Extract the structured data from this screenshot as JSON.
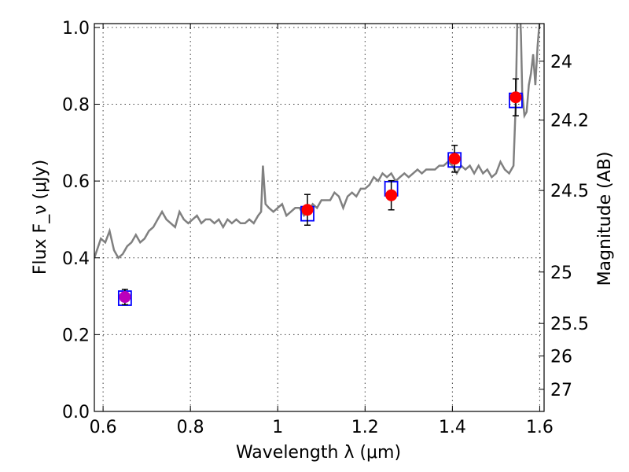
{
  "chart_data": {
    "type": "line",
    "xlabel": "Wavelength λ (μm)",
    "ylabel": "Flux F_ν (μJy)",
    "ylabel_right": "Magnitude (AB)",
    "xlim": [
      0.58,
      1.61
    ],
    "ylim": [
      0.0,
      1.01
    ],
    "grid": true,
    "x_ticks": [
      0.6,
      0.8,
      1.0,
      1.2,
      1.4,
      1.6
    ],
    "x_tick_labels": [
      "0.6",
      "0.8",
      "1",
      "1.2",
      "1.4",
      "1.6"
    ],
    "y_ticks": [
      0.0,
      0.2,
      0.4,
      0.6,
      0.8,
      1.0
    ],
    "y_tick_labels": [
      "0.0",
      "0.2",
      "0.4",
      "0.6",
      "0.8",
      "1.0"
    ],
    "right_ticks": [
      {
        "label": "24",
        "mag": 24.0
      },
      {
        "label": "24.2",
        "mag": 24.2
      },
      {
        "label": "24.5",
        "mag": 24.5
      },
      {
        "label": "25",
        "mag": 25.0
      },
      {
        "label": "25.5",
        "mag": 25.5
      },
      {
        "label": "26",
        "mag": 26.0
      },
      {
        "label": "27",
        "mag": 27.0
      }
    ],
    "series": [
      {
        "kind": "spectrum-line",
        "color": "#808080",
        "x": [
          0.58,
          0.595,
          0.605,
          0.615,
          0.625,
          0.635,
          0.645,
          0.655,
          0.665,
          0.675,
          0.685,
          0.695,
          0.705,
          0.715,
          0.725,
          0.735,
          0.745,
          0.755,
          0.765,
          0.775,
          0.785,
          0.795,
          0.805,
          0.815,
          0.825,
          0.835,
          0.845,
          0.855,
          0.865,
          0.875,
          0.885,
          0.895,
          0.905,
          0.915,
          0.925,
          0.935,
          0.945,
          0.955,
          0.962,
          0.966,
          0.972,
          0.98,
          0.99,
          1.0,
          1.01,
          1.02,
          1.03,
          1.04,
          1.05,
          1.06,
          1.07,
          1.08,
          1.09,
          1.1,
          1.11,
          1.12,
          1.13,
          1.14,
          1.15,
          1.16,
          1.17,
          1.18,
          1.19,
          1.2,
          1.21,
          1.22,
          1.23,
          1.24,
          1.25,
          1.26,
          1.27,
          1.28,
          1.29,
          1.3,
          1.31,
          1.32,
          1.33,
          1.34,
          1.35,
          1.36,
          1.37,
          1.38,
          1.39,
          1.4,
          1.41,
          1.42,
          1.43,
          1.44,
          1.45,
          1.46,
          1.47,
          1.48,
          1.49,
          1.5,
          1.51,
          1.52,
          1.53,
          1.54,
          1.545,
          1.55,
          1.553,
          1.557,
          1.56,
          1.565,
          1.57,
          1.575,
          1.58,
          1.585,
          1.59,
          1.595,
          1.6,
          1.605
        ],
        "y": [
          0.4,
          0.45,
          0.44,
          0.47,
          0.42,
          0.4,
          0.41,
          0.43,
          0.44,
          0.46,
          0.44,
          0.45,
          0.47,
          0.48,
          0.5,
          0.52,
          0.5,
          0.49,
          0.48,
          0.52,
          0.5,
          0.49,
          0.5,
          0.51,
          0.49,
          0.5,
          0.5,
          0.49,
          0.5,
          0.48,
          0.5,
          0.49,
          0.5,
          0.49,
          0.49,
          0.5,
          0.49,
          0.51,
          0.52,
          0.64,
          0.54,
          0.53,
          0.52,
          0.53,
          0.54,
          0.51,
          0.52,
          0.53,
          0.53,
          0.51,
          0.52,
          0.54,
          0.53,
          0.55,
          0.55,
          0.55,
          0.57,
          0.56,
          0.53,
          0.56,
          0.57,
          0.56,
          0.58,
          0.58,
          0.59,
          0.61,
          0.6,
          0.62,
          0.61,
          0.62,
          0.6,
          0.61,
          0.62,
          0.61,
          0.62,
          0.63,
          0.62,
          0.63,
          0.63,
          0.63,
          0.64,
          0.64,
          0.65,
          0.64,
          0.62,
          0.64,
          0.63,
          0.64,
          0.62,
          0.64,
          0.62,
          0.63,
          0.61,
          0.62,
          0.65,
          0.63,
          0.62,
          0.64,
          0.8,
          1.1,
          1.1,
          0.98,
          0.83,
          0.77,
          0.78,
          0.85,
          0.88,
          0.93,
          0.85,
          0.95,
          1.02,
          1.04
        ]
      },
      {
        "kind": "model-boxes",
        "color": "#0000ff",
        "x": [
          0.65,
          1.068,
          1.26,
          1.405,
          1.545
        ],
        "y": [
          0.295,
          0.515,
          0.58,
          0.655,
          0.81
        ]
      },
      {
        "kind": "observed-points",
        "color": "#ff0000",
        "x": [
          1.068,
          1.26,
          1.405,
          1.545
        ],
        "y": [
          0.525,
          0.563,
          0.658,
          0.818
        ],
        "yerr": [
          0.04,
          0.038,
          0.035,
          0.048
        ]
      },
      {
        "kind": "observed-point-magenta",
        "color": "#bb00bb",
        "x": [
          0.65
        ],
        "y": [
          0.298
        ],
        "yerr": [
          0.02
        ]
      }
    ]
  }
}
